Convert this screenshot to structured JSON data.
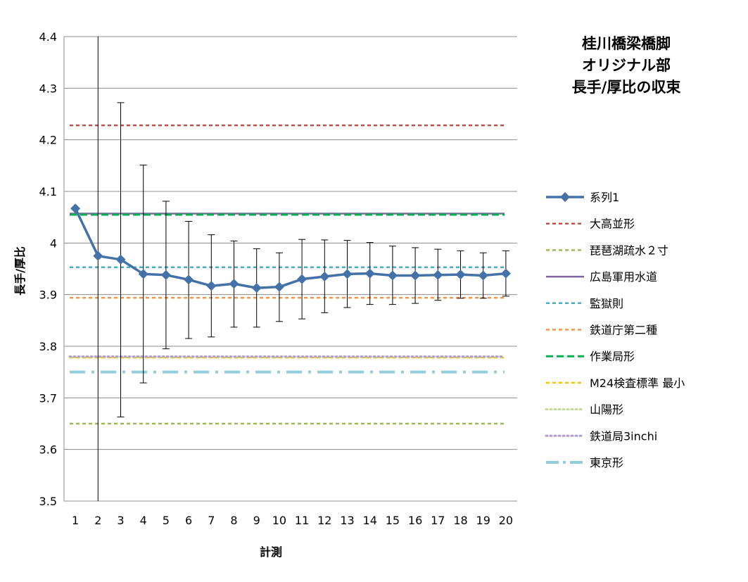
{
  "chart_data": {
    "type": "line",
    "title_lines": [
      "桂川橋梁橋脚",
      "オリジナル部",
      "長手/厚比の収束"
    ],
    "xlabel": "計測",
    "ylabel": "長手/厚比",
    "categories": [
      "1",
      "2",
      "3",
      "4",
      "5",
      "6",
      "7",
      "8",
      "9",
      "10",
      "11",
      "12",
      "13",
      "14",
      "15",
      "16",
      "17",
      "18",
      "19",
      "20"
    ],
    "ylim": [
      3.5,
      4.4
    ],
    "yticks": [
      "3.5",
      "3.6",
      "3.7",
      "3.8",
      "3.9",
      "4",
      "4.1",
      "4.2",
      "4.3",
      "4.4"
    ],
    "grid": "horizontal",
    "legend_position": "right",
    "series": [
      {
        "name": "系列1",
        "kind": "data",
        "color": "#4472a8",
        "marker": "diamond",
        "values": [
          4.067,
          3.975,
          3.968,
          3.94,
          3.938,
          3.929,
          3.917,
          3.921,
          3.913,
          3.915,
          3.93,
          3.935,
          3.94,
          3.941,
          3.937,
          3.937,
          3.938,
          3.939,
          3.937,
          3.941
        ],
        "error_upper": [
          null,
          4.4,
          4.272,
          4.151,
          4.081,
          4.042,
          4.016,
          4.004,
          3.989,
          3.981,
          4.007,
          4.006,
          4.005,
          4.001,
          3.994,
          3.991,
          3.988,
          3.985,
          3.981,
          3.985
        ],
        "error_lower": [
          null,
          3.5,
          3.663,
          3.729,
          3.795,
          3.815,
          3.818,
          3.837,
          3.837,
          3.848,
          3.853,
          3.865,
          3.875,
          3.881,
          3.881,
          3.883,
          3.889,
          3.893,
          3.893,
          3.897
        ]
      },
      {
        "name": "大高並形",
        "kind": "reference",
        "value": 4.228,
        "color": "#c0504d",
        "dash": "short"
      },
      {
        "name": "琵琶湖疏水２寸",
        "kind": "reference",
        "value": 3.65,
        "color": "#9bbb59",
        "dash": "short"
      },
      {
        "name": "広島軍用水道",
        "kind": "reference",
        "value": 4.057,
        "color": "#8064a2",
        "dash": "solid"
      },
      {
        "name": "監獄則",
        "kind": "reference",
        "value": 3.953,
        "color": "#4bacc6",
        "dash": "short"
      },
      {
        "name": "鉄道庁第二種",
        "kind": "reference",
        "value": 3.894,
        "color": "#f79646",
        "dash": "short"
      },
      {
        "name": "作業局形",
        "kind": "reference",
        "value": 4.055,
        "color": "#00b050",
        "dash": "long"
      },
      {
        "name": "M24検査標準 最小",
        "kind": "reference",
        "value": 3.778,
        "color": "#ffc000",
        "dash": "short"
      },
      {
        "name": "山陽形",
        "kind": "reference",
        "value": 3.779,
        "color": "#c4d79b",
        "dash": "dot"
      },
      {
        "name": "鉄道局3inchi",
        "kind": "reference",
        "value": 3.78,
        "color": "#b1a0c7",
        "dash": "dot"
      },
      {
        "name": "東京形",
        "kind": "reference",
        "value": 3.75,
        "color": "#92cddc",
        "dash": "dashdot"
      }
    ]
  }
}
